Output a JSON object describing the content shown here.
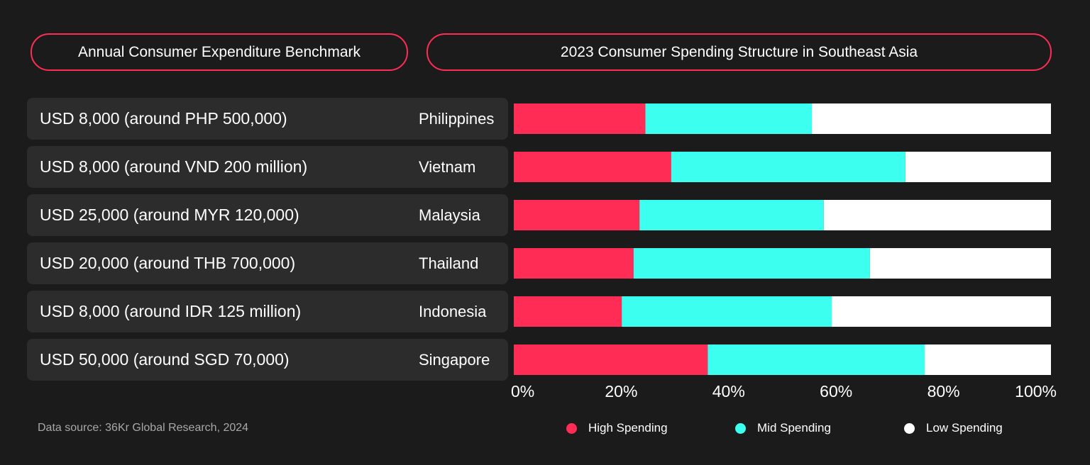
{
  "headers": {
    "left": "Annual Consumer Expenditure Benchmark",
    "right": "2023 Consumer Spending Structure in Southeast Asia"
  },
  "rows": [
    {
      "benchmark": "USD 8,000 (around PHP 500,000)",
      "country": "Philippines"
    },
    {
      "benchmark": "USD 8,000 (around VND 200 million)",
      "country": "Vietnam"
    },
    {
      "benchmark": "USD 25,000 (around MYR 120,000)",
      "country": "Malaysia"
    },
    {
      "benchmark": "USD 20,000 (around THB 700,000)",
      "country": "Thailand"
    },
    {
      "benchmark": "USD 8,000 (around IDR 125 million)",
      "country": "Indonesia"
    },
    {
      "benchmark": "USD 50,000 (around SGD 70,000)",
      "country": "Singapore"
    }
  ],
  "source": "Data source: 36Kr Global Research, 2024",
  "colors": {
    "accent": "#ff2d55",
    "high": "#ff2d55",
    "mid": "#3dfff0",
    "low": "#ffffff",
    "background": "#1b1b1b",
    "row_background": "#2c2c2c"
  },
  "chart_data": {
    "type": "bar",
    "orientation": "horizontal",
    "stacked": true,
    "title": "2023 Consumer Spending Structure in Southeast Asia",
    "categories": [
      "Philippines",
      "Vietnam",
      "Malaysia",
      "Thailand",
      "Indonesia",
      "Singapore"
    ],
    "series": [
      {
        "name": "High Spending",
        "values": [
          24.5,
          29.3,
          23.4,
          22.3,
          20.1,
          36.1
        ]
      },
      {
        "name": "Mid Spending",
        "values": [
          31.0,
          43.6,
          34.3,
          44.0,
          39.1,
          40.4
        ]
      },
      {
        "name": "Low Spending",
        "values": [
          44.5,
          27.1,
          42.3,
          33.7,
          40.8,
          23.5
        ]
      }
    ],
    "xlim": [
      0,
      100
    ],
    "ticks": [
      "0%",
      "20%",
      "40%",
      "60%",
      "80%",
      "100%"
    ],
    "grid": false,
    "legend": "bottom"
  }
}
